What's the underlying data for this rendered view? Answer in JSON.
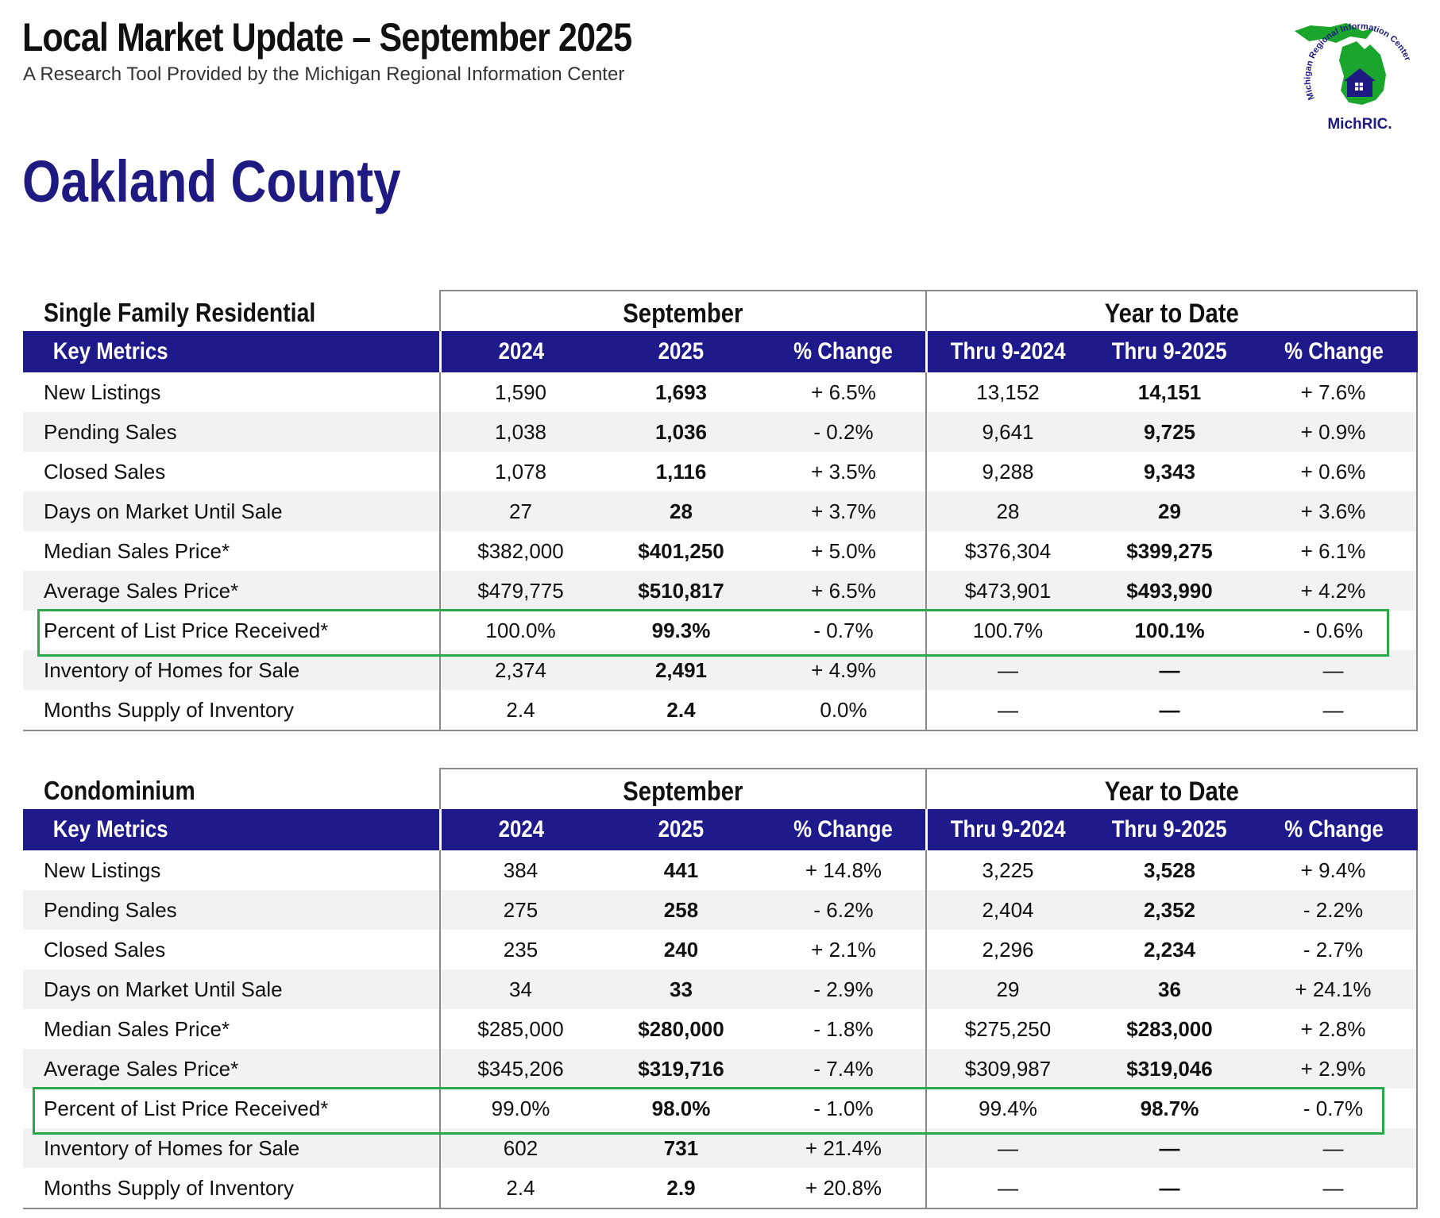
{
  "header": {
    "title": "Local Market Update – September 2025",
    "subtitle": "A Research Tool Provided by the Michigan Regional Information Center"
  },
  "logo": {
    "arc_text": "Michigan Regional Information Center",
    "brand": "MichRIC.",
    "colors": {
      "map": "#1aa52c",
      "text": "#1e1a82"
    }
  },
  "county": "Oakland County",
  "colors": {
    "header_bar": "#1f1a8c",
    "county_title": "#1e1a82",
    "highlight": "#2aa84a",
    "stripe": "#f2f2f2"
  },
  "sections": [
    {
      "title": "Single Family Residential",
      "group_month": "September",
      "group_ytd": "Year to Date",
      "columns": [
        "Key Metrics",
        "2024",
        "2025",
        "% Change",
        "Thru 9-2024",
        "Thru 9-2025",
        "% Change"
      ],
      "highlighted_row": "Percent of List Price Received*",
      "rows": [
        {
          "metric": "New Listings",
          "m2024": "1,590",
          "m2025": "1,693",
          "mchg": "+ 6.5%",
          "y2024": "13,152",
          "y2025": "14,151",
          "ychg": "+ 7.6%"
        },
        {
          "metric": "Pending Sales",
          "m2024": "1,038",
          "m2025": "1,036",
          "mchg": "- 0.2%",
          "y2024": "9,641",
          "y2025": "9,725",
          "ychg": "+ 0.9%"
        },
        {
          "metric": "Closed Sales",
          "m2024": "1,078",
          "m2025": "1,116",
          "mchg": "+ 3.5%",
          "y2024": "9,288",
          "y2025": "9,343",
          "ychg": "+ 0.6%"
        },
        {
          "metric": "Days on Market Until Sale",
          "m2024": "27",
          "m2025": "28",
          "mchg": "+ 3.7%",
          "y2024": "28",
          "y2025": "29",
          "ychg": "+ 3.6%"
        },
        {
          "metric": "Median Sales Price*",
          "m2024": "$382,000",
          "m2025": "$401,250",
          "mchg": "+ 5.0%",
          "y2024": "$376,304",
          "y2025": "$399,275",
          "ychg": "+ 6.1%"
        },
        {
          "metric": "Average Sales Price*",
          "m2024": "$479,775",
          "m2025": "$510,817",
          "mchg": "+ 6.5%",
          "y2024": "$473,901",
          "y2025": "$493,990",
          "ychg": "+ 4.2%"
        },
        {
          "metric": "Percent of List Price Received*",
          "m2024": "100.0%",
          "m2025": "99.3%",
          "mchg": "- 0.7%",
          "y2024": "100.7%",
          "y2025": "100.1%",
          "ychg": "- 0.6%"
        },
        {
          "metric": "Inventory of Homes for Sale",
          "m2024": "2,374",
          "m2025": "2,491",
          "mchg": "+ 4.9%",
          "y2024": "—",
          "y2025": "—",
          "ychg": "—"
        },
        {
          "metric": "Months Supply of Inventory",
          "m2024": "2.4",
          "m2025": "2.4",
          "mchg": "0.0%",
          "y2024": "—",
          "y2025": "—",
          "ychg": "—"
        }
      ]
    },
    {
      "title": "Condominium",
      "group_month": "September",
      "group_ytd": "Year to Date",
      "columns": [
        "Key Metrics",
        "2024",
        "2025",
        "% Change",
        "Thru 9-2024",
        "Thru 9-2025",
        "% Change"
      ],
      "highlighted_row": "Percent of List Price Received*",
      "rows": [
        {
          "metric": "New Listings",
          "m2024": "384",
          "m2025": "441",
          "mchg": "+ 14.8%",
          "y2024": "3,225",
          "y2025": "3,528",
          "ychg": "+ 9.4%"
        },
        {
          "metric": "Pending Sales",
          "m2024": "275",
          "m2025": "258",
          "mchg": "- 6.2%",
          "y2024": "2,404",
          "y2025": "2,352",
          "ychg": "- 2.2%"
        },
        {
          "metric": "Closed Sales",
          "m2024": "235",
          "m2025": "240",
          "mchg": "+ 2.1%",
          "y2024": "2,296",
          "y2025": "2,234",
          "ychg": "- 2.7%"
        },
        {
          "metric": "Days on Market Until Sale",
          "m2024": "34",
          "m2025": "33",
          "mchg": "- 2.9%",
          "y2024": "29",
          "y2025": "36",
          "ychg": "+ 24.1%"
        },
        {
          "metric": "Median Sales Price*",
          "m2024": "$285,000",
          "m2025": "$280,000",
          "mchg": "- 1.8%",
          "y2024": "$275,250",
          "y2025": "$283,000",
          "ychg": "+ 2.8%"
        },
        {
          "metric": "Average Sales Price*",
          "m2024": "$345,206",
          "m2025": "$319,716",
          "mchg": "- 7.4%",
          "y2024": "$309,987",
          "y2025": "$319,046",
          "ychg": "+ 2.9%"
        },
        {
          "metric": "Percent of List Price Received*",
          "m2024": "99.0%",
          "m2025": "98.0%",
          "mchg": "- 1.0%",
          "y2024": "99.4%",
          "y2025": "98.7%",
          "ychg": "- 0.7%"
        },
        {
          "metric": "Inventory of Homes for Sale",
          "m2024": "602",
          "m2025": "731",
          "mchg": "+ 21.4%",
          "y2024": "—",
          "y2025": "—",
          "ychg": "—"
        },
        {
          "metric": "Months Supply of Inventory",
          "m2024": "2.4",
          "m2025": "2.9",
          "mchg": "+ 20.8%",
          "y2024": "—",
          "y2025": "—",
          "ychg": "—"
        }
      ]
    }
  ]
}
